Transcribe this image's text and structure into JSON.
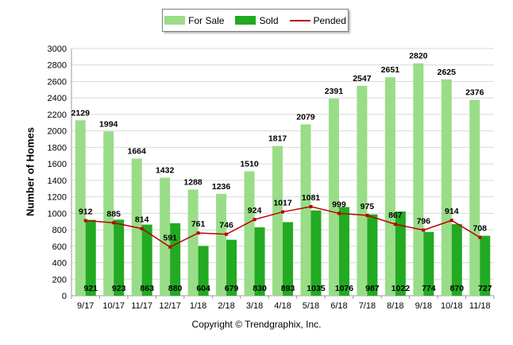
{
  "legend": {
    "for_sale": "For Sale",
    "sold": "Sold",
    "pended": "Pended"
  },
  "footer": {
    "copyright": "Copyright © Trendgraphix, Inc."
  },
  "chart_data": {
    "type": "bar",
    "ylabel": "Number of Homes",
    "xlabel": "",
    "ylim": [
      0,
      3000
    ],
    "ytick_step": 200,
    "grid": true,
    "legend_position": "top-center",
    "categories": [
      "9/17",
      "10/17",
      "11/17",
      "12/17",
      "1/18",
      "2/18",
      "3/18",
      "4/18",
      "5/18",
      "6/18",
      "7/18",
      "8/18",
      "9/18",
      "10/18",
      "11/18"
    ],
    "series": [
      {
        "name": "For Sale",
        "type": "bar",
        "color": "#99dd88",
        "values": [
          2129,
          1994,
          1664,
          1432,
          1288,
          1236,
          1510,
          1817,
          2079,
          2391,
          2547,
          2651,
          2820,
          2625,
          2376
        ]
      },
      {
        "name": "Sold",
        "type": "bar",
        "color": "#22aa22",
        "values": [
          921,
          923,
          863,
          880,
          604,
          679,
          830,
          893,
          1035,
          1076,
          987,
          1022,
          774,
          870,
          727
        ]
      },
      {
        "name": "Pended",
        "type": "line",
        "color": "#bb0000",
        "values": [
          912,
          885,
          814,
          591,
          761,
          746,
          924,
          1017,
          1081,
          999,
          975,
          867,
          796,
          914,
          708
        ]
      }
    ]
  }
}
